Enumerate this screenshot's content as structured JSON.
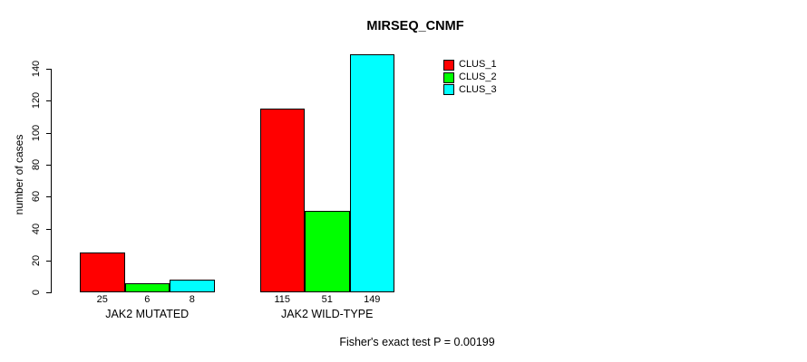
{
  "title": "MIRSEQ_CNMF",
  "annotation": "Fisher's exact test P = 0.00199",
  "colors": {
    "background": "#FFFFFF",
    "axis": "#000000",
    "text": "#000000",
    "clus_1": "#FF0000",
    "clus_2": "#00FF00",
    "clus_3": "#00FFFF"
  },
  "chart_data": {
    "type": "bar",
    "title": "MIRSEQ_CNMF",
    "xlabel": "",
    "ylabel": "number of cases",
    "categories": [
      "JAK2 MUTATED",
      "JAK2 WILD-TYPE"
    ],
    "series": [
      {
        "name": "CLUS_1",
        "color": "#FF0000",
        "values": [
          25,
          115
        ]
      },
      {
        "name": "CLUS_2",
        "color": "#00FF00",
        "values": [
          6,
          51
        ]
      },
      {
        "name": "CLUS_3",
        "color": "#00FFFF",
        "values": [
          8,
          149
        ]
      }
    ],
    "yticks": [
      0,
      20,
      40,
      60,
      80,
      100,
      120,
      140
    ],
    "ylim": [
      0,
      149
    ],
    "grid": false,
    "legend_position": "top-right",
    "bar_value_labels": true,
    "annotation": "Fisher's exact test P = 0.00199"
  }
}
